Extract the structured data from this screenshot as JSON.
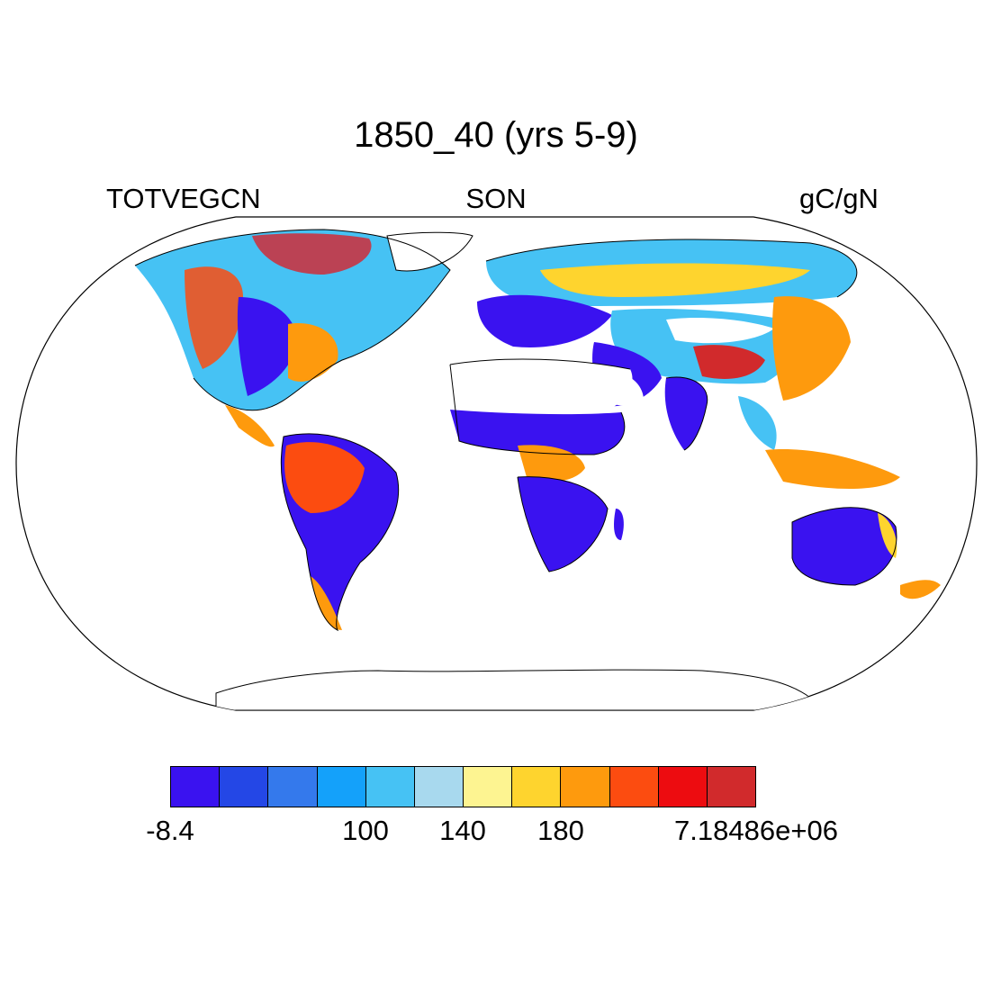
{
  "title": "1850_40 (yrs 5-9)",
  "subtitle_left": "TOTVEGCN",
  "subtitle_center": "SON",
  "subtitle_right": "gC/gN",
  "colorbar": {
    "colors": [
      "#3a12f0",
      "#2447e6",
      "#3479ec",
      "#14a1fa",
      "#46c2f4",
      "#a8d9ee",
      "#fdf491",
      "#fed42e",
      "#fe9a0d",
      "#fc4c10",
      "#ed0c10",
      "#d12a2c"
    ],
    "labels": [
      "-8.4",
      "100",
      "140",
      "180",
      "7.18486e+06"
    ],
    "label_boundary_index": [
      0,
      4,
      5,
      7,
      10
    ]
  },
  "regions": [
    {
      "name": "amazon",
      "color": "#fc4c10"
    },
    {
      "name": "sahel",
      "color": "#3a12f0"
    },
    {
      "name": "sahara",
      "color": "#ffffff"
    },
    {
      "name": "australia",
      "color": "#3a12f0"
    },
    {
      "name": "central-africa",
      "color": "#fe9a0d"
    },
    {
      "name": "siberia",
      "color": "#fed42e"
    },
    {
      "name": "india",
      "color": "#3a12f0"
    },
    {
      "name": "southeast-asia",
      "color": "#fe9a0d"
    },
    {
      "name": "tibet",
      "color": "#d12a2c"
    }
  ]
}
